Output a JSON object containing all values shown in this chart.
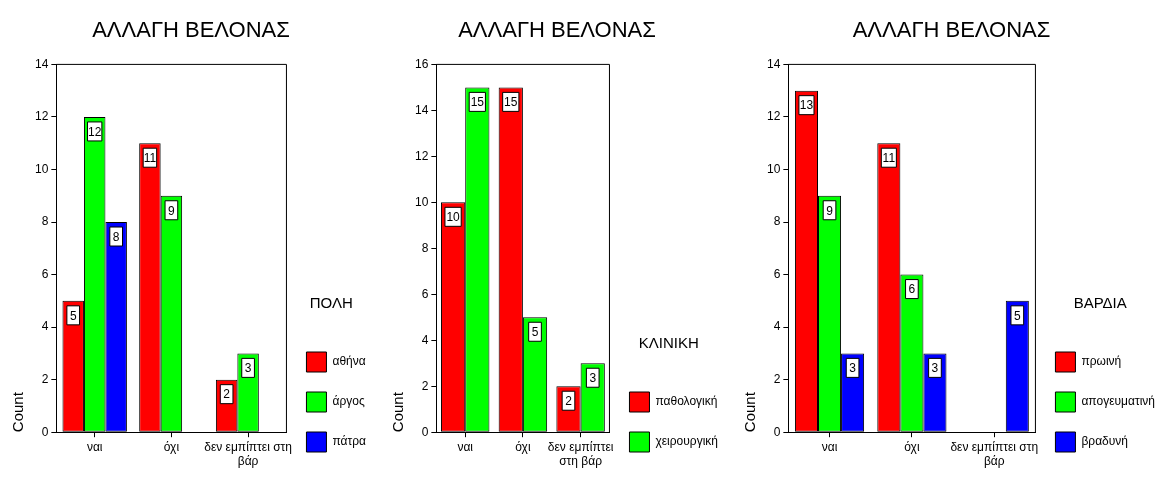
{
  "chart_data": [
    {
      "type": "bar",
      "title": "ΑΛΛΑΓΗ ΒΕΛΟΝΑΣ",
      "ylabel": "Count",
      "legend_title": "ΠΟΛΗ",
      "categories": [
        "ναι",
        "όχι",
        "δεν εμπίπτει στη βάρ"
      ],
      "series": [
        {
          "name": "αθήνα",
          "color": "#ff0000",
          "values": [
            5,
            11,
            2
          ]
        },
        {
          "name": "άργος",
          "color": "#00ff00",
          "values": [
            12,
            9,
            3
          ]
        },
        {
          "name": "πάτρα",
          "color": "#0000ff",
          "values": [
            8,
            null,
            null
          ]
        }
      ],
      "ylim": [
        0,
        14
      ],
      "yticks": [
        0,
        2,
        4,
        6,
        8,
        10,
        12,
        14
      ],
      "data_labels": true,
      "legend": "right"
    },
    {
      "type": "bar",
      "title": "ΑΛΛΑΓΗ ΒΕΛΟΝΑΣ",
      "ylabel": "Count",
      "legend_title": "ΚΛΙΝΙΚΗ",
      "categories": [
        "ναι",
        "όχι",
        "δεν εμπίπτει στη βάρ"
      ],
      "series": [
        {
          "name": "παθολογική",
          "color": "#ff0000",
          "values": [
            10,
            15,
            2
          ]
        },
        {
          "name": "χειρουργική",
          "color": "#00ff00",
          "values": [
            15,
            5,
            3
          ]
        }
      ],
      "ylim": [
        0,
        16
      ],
      "yticks": [
        0,
        2,
        4,
        6,
        8,
        10,
        12,
        14,
        16
      ],
      "data_labels": true,
      "legend": "right"
    },
    {
      "type": "bar",
      "title": "ΑΛΛΑΓΗ ΒΕΛΟΝΑΣ",
      "ylabel": "Count",
      "legend_title": "ΒΑΡΔΙΑ",
      "categories": [
        "ναι",
        "όχι",
        "δεν εμπίπτει στη βάρ"
      ],
      "series": [
        {
          "name": "πρωινή",
          "color": "#ff0000",
          "values": [
            13,
            11,
            null
          ]
        },
        {
          "name": "απογευματινή",
          "color": "#00ff00",
          "values": [
            9,
            6,
            null
          ]
        },
        {
          "name": "βραδυνή",
          "color": "#0000ff",
          "values": [
            3,
            3,
            5
          ]
        }
      ],
      "ylim": [
        0,
        14
      ],
      "yticks": [
        0,
        2,
        4,
        6,
        8,
        10,
        12,
        14
      ],
      "data_labels": true,
      "legend": "right"
    }
  ]
}
